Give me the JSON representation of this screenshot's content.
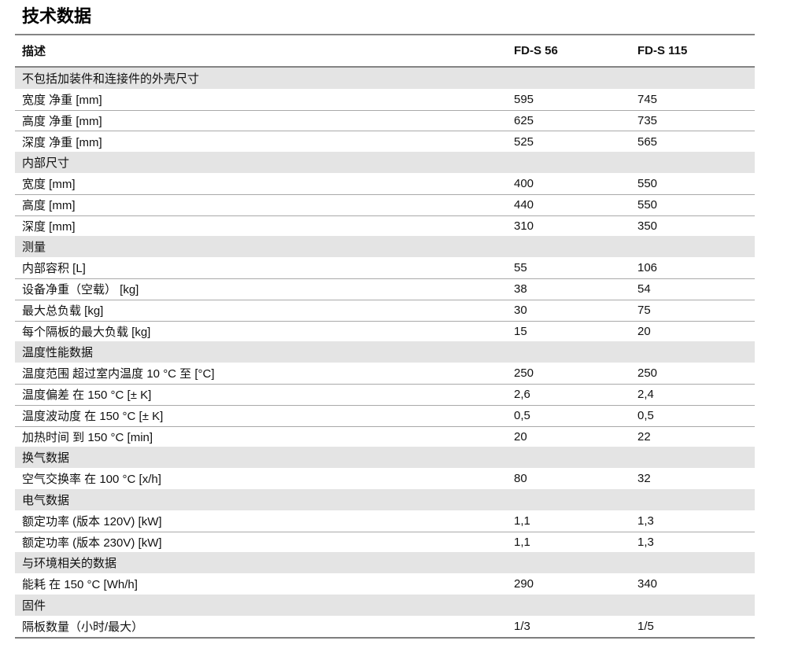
{
  "page": {
    "title": "技术数据"
  },
  "table": {
    "columns": [
      "描述",
      "FD-S 56",
      "FD-S 115"
    ],
    "rows": [
      {
        "type": "section",
        "label": "不包括加装件和连接件的外壳尺寸"
      },
      {
        "type": "data",
        "label": "宽度 净重 [mm]",
        "fds56": "595",
        "fds115": "745"
      },
      {
        "type": "data",
        "label": "高度 净重 [mm]",
        "fds56": "625",
        "fds115": "735"
      },
      {
        "type": "data",
        "label": "深度 净重 [mm]",
        "fds56": "525",
        "fds115": "565"
      },
      {
        "type": "section",
        "label": "内部尺寸"
      },
      {
        "type": "data",
        "label": "宽度 [mm]",
        "fds56": "400",
        "fds115": "550"
      },
      {
        "type": "data",
        "label": "高度 [mm]",
        "fds56": "440",
        "fds115": "550"
      },
      {
        "type": "data",
        "label": "深度 [mm]",
        "fds56": "310",
        "fds115": "350"
      },
      {
        "type": "section",
        "label": "测量"
      },
      {
        "type": "data",
        "label": "内部容积 [L]",
        "fds56": "55",
        "fds115": "106"
      },
      {
        "type": "data",
        "label": "设备净重（空载） [kg]",
        "fds56": "38",
        "fds115": "54"
      },
      {
        "type": "data",
        "label": "最大总负载 [kg]",
        "fds56": "30",
        "fds115": "75"
      },
      {
        "type": "data",
        "label": "每个隔板的最大负载 [kg]",
        "fds56": "15",
        "fds115": "20"
      },
      {
        "type": "section",
        "label": "温度性能数据"
      },
      {
        "type": "data",
        "label": "温度范围 超过室内温度 10 °C 至 [°C]",
        "fds56": "250",
        "fds115": "250"
      },
      {
        "type": "data",
        "label": "温度偏差 在 150 °C [± K]",
        "fds56": "2,6",
        "fds115": "2,4"
      },
      {
        "type": "data",
        "label": "温度波动度 在 150 °C [± K]",
        "fds56": "0,5",
        "fds115": "0,5"
      },
      {
        "type": "data",
        "label": "加热时间 到 150 °C [min]",
        "fds56": "20",
        "fds115": "22"
      },
      {
        "type": "section",
        "label": "换气数据"
      },
      {
        "type": "data",
        "label": "空气交换率 在 100 °C [x/h]",
        "fds56": "80",
        "fds115": "32"
      },
      {
        "type": "section",
        "label": "电气数据"
      },
      {
        "type": "data",
        "label": "额定功率 (版本 120V) [kW]",
        "fds56": "1,1",
        "fds115": "1,3"
      },
      {
        "type": "data",
        "label": "额定功率 (版本 230V) [kW]",
        "fds56": "1,1",
        "fds115": "1,3"
      },
      {
        "type": "section",
        "label": "与环境相关的数据"
      },
      {
        "type": "data",
        "label": "能耗 在 150 °C [Wh/h]",
        "fds56": "290",
        "fds115": "340"
      },
      {
        "type": "section",
        "label": "固件"
      },
      {
        "type": "data",
        "label": "隔板数量（小时/最大）",
        "fds56": "1/3",
        "fds115": "1/5"
      }
    ]
  }
}
